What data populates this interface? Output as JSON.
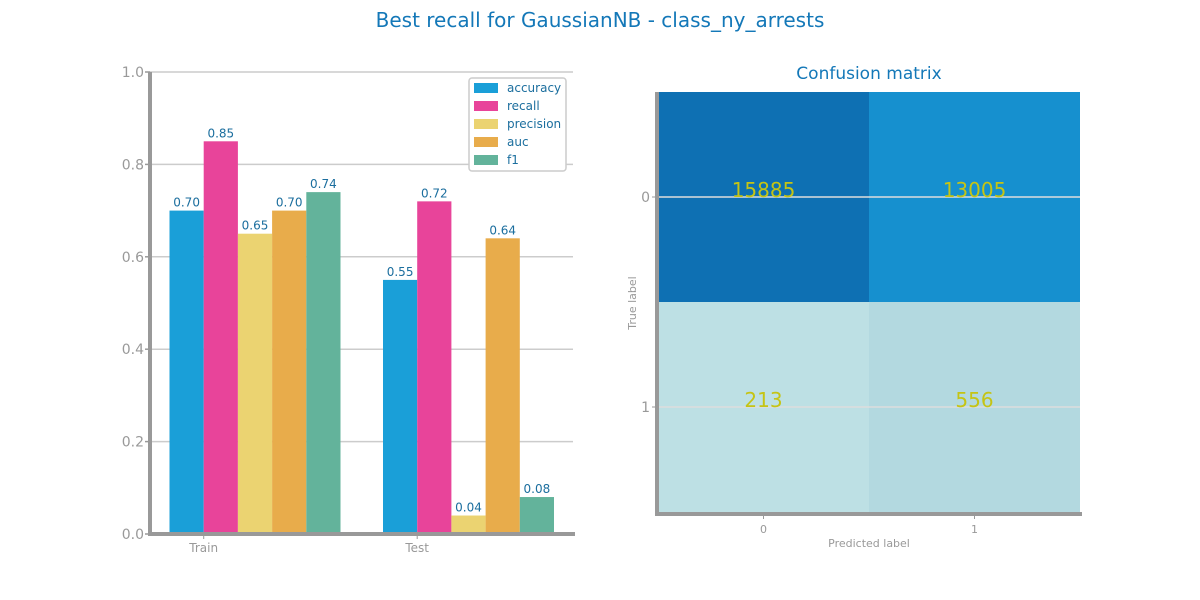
{
  "title": "Best recall for GaussianNB  - class_ny_arrests",
  "chart_data": [
    {
      "type": "bar",
      "categories": [
        "Train",
        "Test"
      ],
      "ylim": [
        0,
        1.0
      ],
      "yticks": [
        "0.0",
        "0.2",
        "0.4",
        "0.6",
        "0.8",
        "1.0"
      ],
      "grid": true,
      "legend_position": "top-right",
      "series": [
        {
          "name": "accuracy",
          "color": "#1a9fd8",
          "values": [
            0.7,
            0.55
          ],
          "labels": [
            "0.70",
            "0.55"
          ]
        },
        {
          "name": "recall",
          "color": "#e8449a",
          "values": [
            0.85,
            0.72
          ],
          "labels": [
            "0.85",
            "0.72"
          ]
        },
        {
          "name": "precision",
          "color": "#ebd371",
          "values": [
            0.65,
            0.04
          ],
          "labels": [
            "0.65",
            "0.04"
          ]
        },
        {
          "name": "auc",
          "color": "#e8ac4b",
          "values": [
            0.7,
            0.64
          ],
          "labels": [
            "0.70",
            "0.64"
          ]
        },
        {
          "name": "f1",
          "color": "#63b39b",
          "values": [
            0.74,
            0.08
          ],
          "labels": [
            "0.74",
            "0.08"
          ]
        }
      ]
    },
    {
      "type": "heatmap",
      "title": "Confusion matrix",
      "xlabel": "Predicted label",
      "ylabel": "True label",
      "x_categories": [
        "0",
        "1"
      ],
      "y_categories": [
        "0",
        "1"
      ],
      "values": [
        [
          15885,
          13005
        ],
        [
          213,
          556
        ]
      ],
      "labels": [
        [
          "15885",
          "13005"
        ],
        [
          "213",
          "556"
        ]
      ],
      "cell_colors": [
        [
          "#0e70b3",
          "#1690cf"
        ],
        [
          "#bde0e4",
          "#b3d9e0"
        ]
      ]
    }
  ]
}
